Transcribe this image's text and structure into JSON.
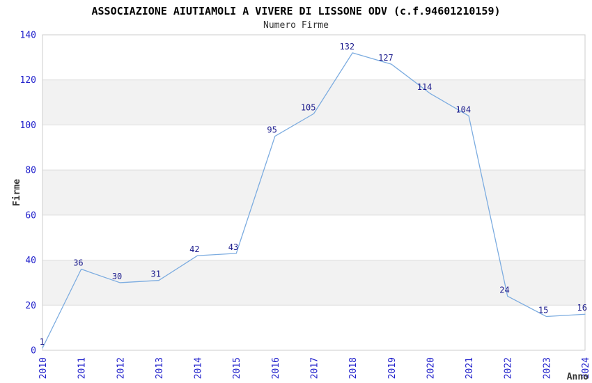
{
  "header": {
    "title": "ASSOCIAZIONE AIUTIAMOLI A VIVERE DI LISSONE ODV (c.f.94601210159)",
    "subtitle": "Numero Firme"
  },
  "chart_data": {
    "type": "line",
    "title": "ASSOCIAZIONE AIUTIAMOLI A VIVERE DI LISSONE ODV (c.f.94601210159)",
    "subtitle": "Numero Firme",
    "xlabel": "Anno",
    "ylabel": "Firme",
    "x": [
      "2010",
      "2011",
      "2012",
      "2013",
      "2014",
      "2015",
      "2016",
      "2017",
      "2018",
      "2019",
      "2020",
      "2021",
      "2022",
      "2023",
      "2024"
    ],
    "values": [
      1,
      36,
      30,
      31,
      42,
      43,
      95,
      105,
      132,
      127,
      114,
      104,
      24,
      15,
      16
    ],
    "ylim": [
      0,
      140
    ],
    "yticks": [
      0,
      20,
      40,
      60,
      80,
      100,
      120,
      140
    ],
    "ytick_step": 20,
    "grid": "alternating-horizontal-bands",
    "legend": "none",
    "data_labels_shown": true,
    "colors": {
      "line": "#7CACE0",
      "data_label": "#1A1A8C",
      "tick_label": "#2222CC",
      "axis_title": "#333333",
      "band_fill": "#F2F2F2",
      "gridline": "#DDDDDD",
      "plot_border": "#CCCCCC",
      "background": "#FFFFFF",
      "title": "#000000",
      "subtitle": "#333333"
    }
  }
}
